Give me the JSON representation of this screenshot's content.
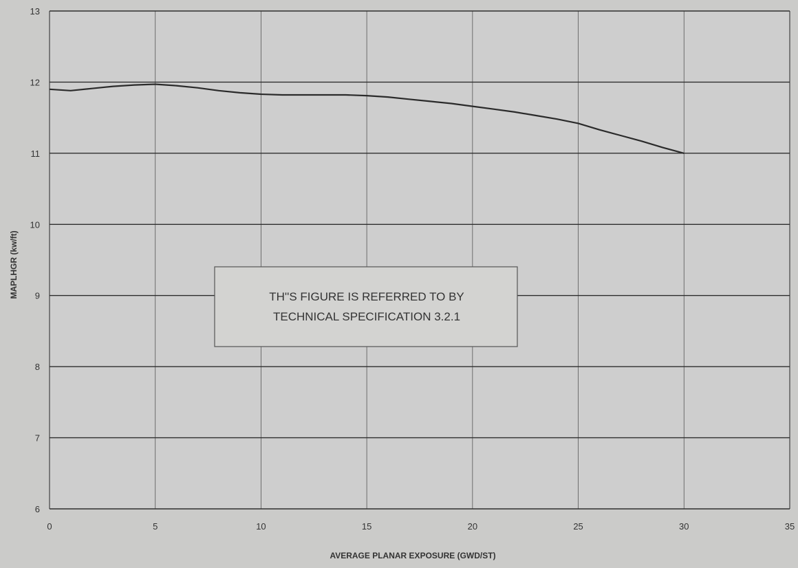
{
  "chart_data": {
    "type": "line",
    "xlabel": "AVERAGE PLANAR EXPOSURE (GWD/ST)",
    "ylabel": "MAPLHGR (kw/ft)",
    "xlim": [
      0,
      35
    ],
    "ylim": [
      6,
      13
    ],
    "x_ticks": [
      0,
      5,
      10,
      15,
      20,
      25,
      30,
      35
    ],
    "y_ticks": [
      6,
      7,
      8,
      9,
      10,
      11,
      12,
      13
    ],
    "grid": true,
    "series": [
      {
        "points": [
          [
            0,
            11.9
          ],
          [
            1,
            11.88
          ],
          [
            2,
            11.91
          ],
          [
            3,
            11.94
          ],
          [
            4,
            11.96
          ],
          [
            5,
            11.97
          ],
          [
            6,
            11.95
          ],
          [
            7,
            11.92
          ],
          [
            8,
            11.88
          ],
          [
            9,
            11.85
          ],
          [
            10,
            11.83
          ],
          [
            11,
            11.82
          ],
          [
            12,
            11.82
          ],
          [
            13,
            11.82
          ],
          [
            14,
            11.82
          ],
          [
            15,
            11.81
          ],
          [
            16,
            11.79
          ],
          [
            17,
            11.76
          ],
          [
            18,
            11.73
          ],
          [
            19,
            11.7
          ],
          [
            20,
            11.66
          ],
          [
            21,
            11.62
          ],
          [
            22,
            11.58
          ],
          [
            23,
            11.53
          ],
          [
            24,
            11.48
          ],
          [
            25,
            11.42
          ],
          [
            26,
            11.33
          ],
          [
            27,
            11.25
          ],
          [
            28,
            11.17
          ],
          [
            29,
            11.08
          ],
          [
            30,
            11.0
          ]
        ]
      }
    ],
    "annotation": {
      "lines": [
        "TH''S FIGURE IS REFERRED TO BY",
        "TECHNICAL SPECIFICATION  3.2.1"
      ]
    },
    "colors": {
      "background": "#cbcbc9",
      "plot_area": "#cecece",
      "grid": "#2e2e2e",
      "line": "#2a2a2a",
      "annotation_box": "#d3d3d1",
      "text": "#333333"
    }
  }
}
